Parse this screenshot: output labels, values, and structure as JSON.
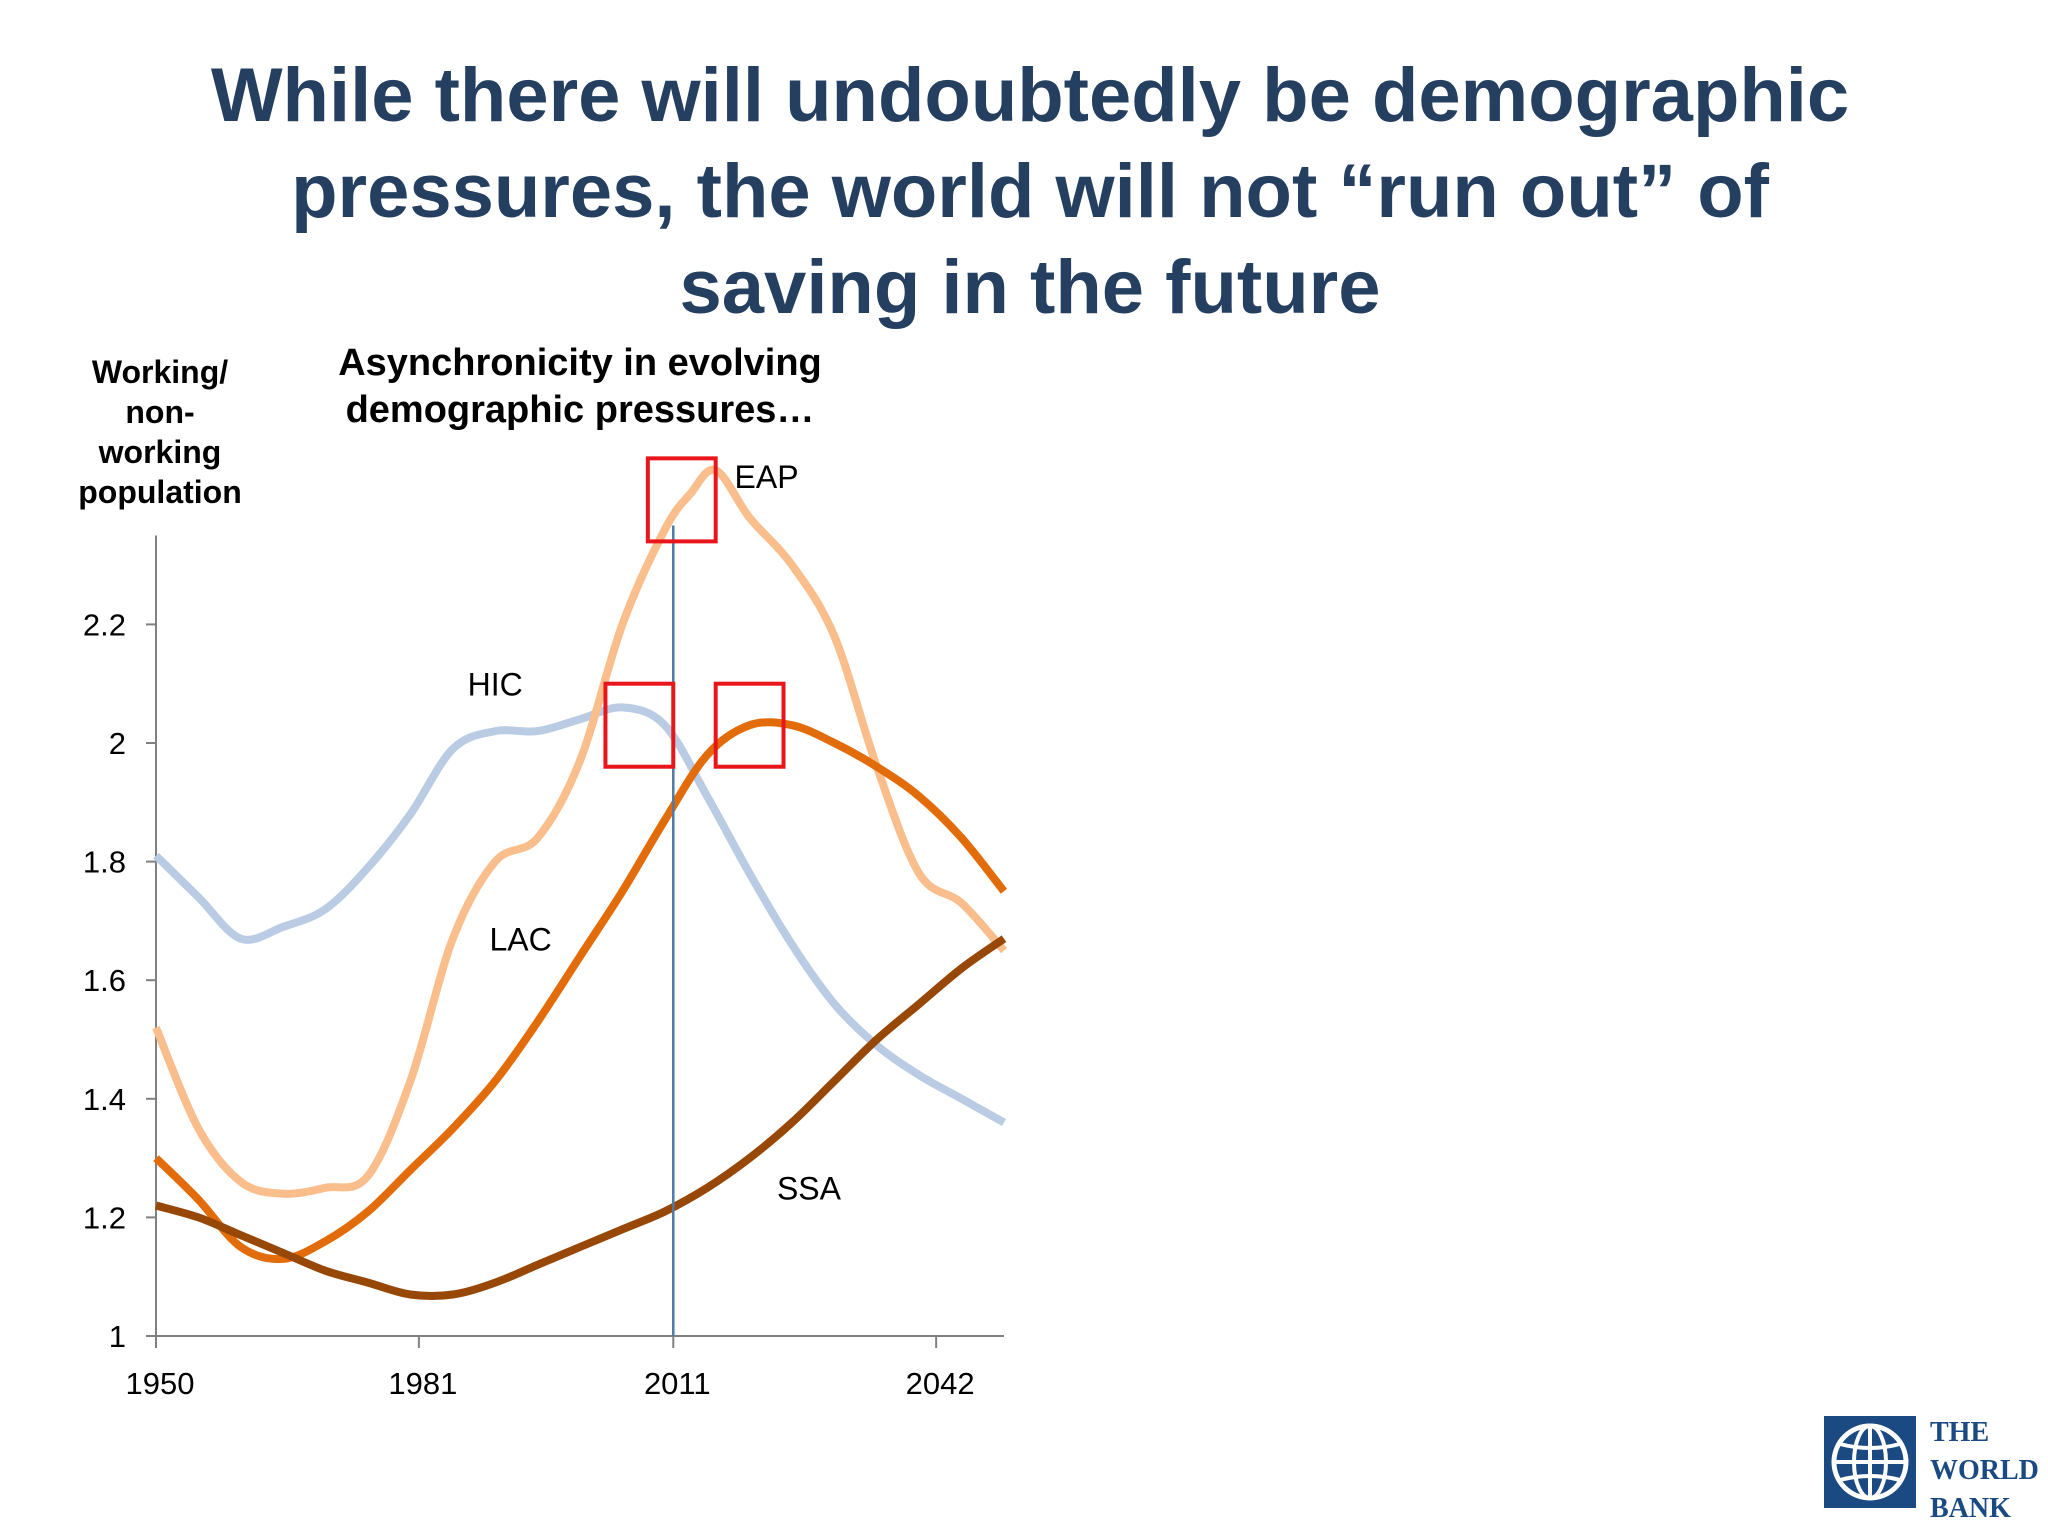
{
  "slide": {
    "title_lines": [
      "While there will undoubtedly be demographic",
      "pressures, the world will not “run out” of",
      "saving in the future"
    ]
  },
  "chart_data": {
    "type": "line",
    "title_lines": [
      "Asynchronicity in evolving",
      "demographic pressures…"
    ],
    "ylabel_lines": [
      "Working/",
      "non-",
      "working",
      "population"
    ],
    "xlabel": "",
    "xlim": [
      1950,
      2050
    ],
    "ylim": [
      1,
      2.35
    ],
    "x_ticks": [
      1950,
      1981,
      2011,
      2042
    ],
    "x_tick_labels": [
      "1950",
      "1981",
      "2011",
      "2042"
    ],
    "y_ticks": [
      1,
      1.2,
      1.4,
      1.6,
      1.8,
      2,
      2.2
    ],
    "y_tick_labels": [
      "1",
      "1.2",
      "1.4",
      "1.6",
      "1.8",
      "2",
      "2.2"
    ],
    "reference_line_x": 2011,
    "series": [
      {
        "name": "HIC",
        "color": "#b9cce4",
        "x": [
          1950,
          1955,
          1960,
          1965,
          1970,
          1975,
          1980,
          1985,
          1990,
          1995,
          2000,
          2005,
          2010,
          2015,
          2020,
          2025,
          2030,
          2035,
          2040,
          2045,
          2050
        ],
        "values": [
          1.81,
          1.74,
          1.67,
          1.69,
          1.72,
          1.79,
          1.88,
          1.99,
          2.02,
          2.02,
          2.04,
          2.06,
          2.03,
          1.91,
          1.78,
          1.66,
          1.56,
          1.49,
          1.44,
          1.4,
          1.36
        ]
      },
      {
        "name": "EAP",
        "color": "#f9be8c",
        "x": [
          1950,
          1955,
          1960,
          1965,
          1970,
          1975,
          1980,
          1985,
          1990,
          1995,
          2000,
          2005,
          2010,
          2013,
          2016,
          2020,
          2025,
          2030,
          2035,
          2040,
          2045,
          2050
        ],
        "values": [
          1.52,
          1.35,
          1.26,
          1.24,
          1.25,
          1.27,
          1.43,
          1.67,
          1.8,
          1.84,
          1.97,
          2.2,
          2.36,
          2.42,
          2.46,
          2.38,
          2.3,
          2.18,
          1.96,
          1.78,
          1.73,
          1.65
        ]
      },
      {
        "name": "LAC",
        "color": "#e36c0a",
        "x": [
          1950,
          1955,
          1960,
          1965,
          1970,
          1975,
          1980,
          1985,
          1990,
          1995,
          2000,
          2005,
          2010,
          2015,
          2020,
          2025,
          2030,
          2035,
          2040,
          2045,
          2050
        ],
        "values": [
          1.3,
          1.23,
          1.15,
          1.13,
          1.16,
          1.21,
          1.28,
          1.35,
          1.43,
          1.53,
          1.64,
          1.75,
          1.87,
          1.98,
          2.03,
          2.03,
          2.0,
          1.96,
          1.91,
          1.84,
          1.75
        ]
      },
      {
        "name": "SSA",
        "color": "#974806",
        "x": [
          1950,
          1955,
          1960,
          1965,
          1970,
          1975,
          1980,
          1985,
          1990,
          1995,
          2000,
          2005,
          2010,
          2015,
          2020,
          2025,
          2030,
          2035,
          2040,
          2045,
          2050
        ],
        "values": [
          1.22,
          1.2,
          1.17,
          1.14,
          1.11,
          1.09,
          1.07,
          1.07,
          1.09,
          1.12,
          1.15,
          1.18,
          1.21,
          1.25,
          1.3,
          1.36,
          1.43,
          1.5,
          1.56,
          1.62,
          1.67
        ]
      }
    ],
    "series_labels": [
      {
        "text": "HIC",
        "x": 1990,
        "y": 2.08
      },
      {
        "text": "EAP",
        "x": 2022,
        "y": 2.43
      },
      {
        "text": "LAC",
        "x": 1993,
        "y": 1.65
      },
      {
        "text": "SSA",
        "x": 2027,
        "y": 1.23
      }
    ],
    "highlight_boxes": [
      {
        "series": "EAP",
        "x_range": [
          2008,
          2016
        ],
        "y_range": [
          2.34,
          2.48
        ]
      },
      {
        "series": "HIC",
        "x_range": [
          2003,
          2011
        ],
        "y_range": [
          1.96,
          2.1
        ]
      },
      {
        "series": "LAC",
        "x_range": [
          2016,
          2024
        ],
        "y_range": [
          1.96,
          2.1
        ]
      }
    ],
    "highlight_color": "#e8161b",
    "reference_line_color": "#4f7aa8"
  },
  "logo": {
    "lines": [
      "THE",
      "WORLD",
      "BANK"
    ],
    "color": "#1b4a82"
  }
}
